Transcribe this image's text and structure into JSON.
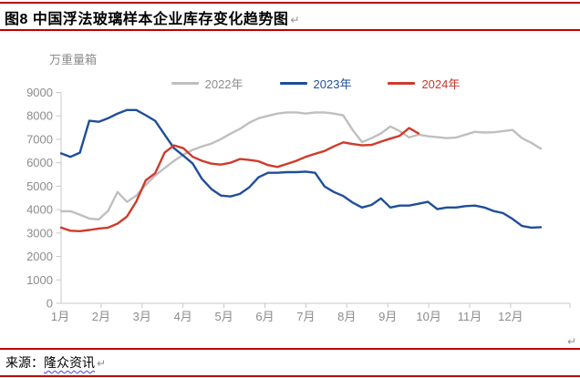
{
  "header": {
    "title": "图8  中国浮法玻璃样本企业库存变化趋势图"
  },
  "marks": {
    "pilcrow": "↵"
  },
  "source": {
    "label": "来源：",
    "name": "隆众资讯"
  },
  "colors": {
    "rule_red": "#C00000",
    "axis_line": "#c9c9c9",
    "axis_text": "#8c8c8c",
    "series_2022": "#BFBFBF",
    "series_2023": "#1F4E99",
    "series_2024": "#D03A2B"
  },
  "chart_data": {
    "type": "line",
    "title": "中国浮法玻璃样本企业库存变化趋势图",
    "ylabel": "万重量箱",
    "xlabel": "",
    "ylim": [
      0,
      9000
    ],
    "y_ticks": [
      0,
      1000,
      2000,
      3000,
      4000,
      5000,
      6000,
      7000,
      8000,
      9000
    ],
    "x_categories": [
      "1月",
      "2月",
      "3月",
      "4月",
      "5月",
      "6月",
      "7月",
      "8月",
      "9月",
      "10月",
      "11月",
      "12月"
    ],
    "sampling": "weekly",
    "grid": "off",
    "legend_position": "top",
    "series": [
      {
        "name": "2022年",
        "color": "#BFBFBF",
        "label_color": "#8c8c8c",
        "values": [
          3930,
          3930,
          3780,
          3620,
          3580,
          3950,
          4750,
          4330,
          4600,
          5050,
          5450,
          5770,
          6080,
          6350,
          6550,
          6700,
          6820,
          7010,
          7240,
          7440,
          7710,
          7900,
          8000,
          8100,
          8150,
          8150,
          8100,
          8150,
          8150,
          8100,
          8020,
          7400,
          6880,
          7050,
          7250,
          7550,
          7350,
          7080,
          7200,
          7130,
          7090,
          7050,
          7080,
          7200,
          7320,
          7290,
          7300,
          7350,
          7400,
          7050,
          6850,
          6600
        ]
      },
      {
        "name": "2023年",
        "color": "#1F4E99",
        "label_color": "#1F4E99",
        "values": [
          6400,
          6250,
          6430,
          7790,
          7750,
          7900,
          8100,
          8250,
          8250,
          8030,
          7790,
          7200,
          6620,
          6300,
          5960,
          5300,
          4870,
          4600,
          4560,
          4670,
          4950,
          5380,
          5570,
          5570,
          5600,
          5600,
          5620,
          5570,
          4990,
          4750,
          4580,
          4300,
          4090,
          4200,
          4480,
          4090,
          4170,
          4170,
          4250,
          4330,
          4020,
          4090,
          4090,
          4150,
          4170,
          4090,
          3940,
          3850,
          3600,
          3300,
          3230,
          3250
        ]
      },
      {
        "name": "2024年",
        "color": "#D03A2B",
        "label_color": "#C4392B",
        "values": [
          3230,
          3100,
          3080,
          3130,
          3190,
          3230,
          3400,
          3700,
          4350,
          5250,
          5550,
          6430,
          6740,
          6620,
          6250,
          6080,
          5960,
          5920,
          6000,
          6160,
          6120,
          6060,
          5900,
          5820,
          5950,
          6080,
          6250,
          6380,
          6500,
          6700,
          6870,
          6800,
          6740,
          6760,
          6900,
          7030,
          7150,
          7480,
          7250
        ]
      }
    ]
  }
}
